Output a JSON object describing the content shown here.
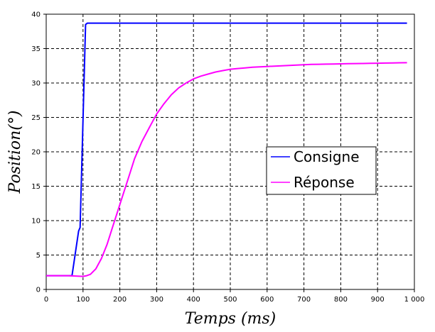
{
  "chart_data": {
    "type": "line",
    "xlabel": "Temps (ms)",
    "ylabel": "Position(°)",
    "xlim": [
      0,
      1000
    ],
    "ylim": [
      0,
      40
    ],
    "xticks": [
      0,
      100,
      200,
      300,
      400,
      500,
      600,
      700,
      800,
      900,
      1000
    ],
    "xtick_labels": [
      "0",
      "100",
      "200",
      "300",
      "400",
      "500",
      "600",
      "700",
      "800",
      "900",
      "1 000"
    ],
    "yticks": [
      0,
      5,
      10,
      15,
      20,
      25,
      30,
      35,
      40
    ],
    "ytick_labels": [
      "0",
      "5",
      "10",
      "15",
      "20",
      "25",
      "30",
      "35",
      "40"
    ],
    "grid": true,
    "legend_position": "right",
    "series": [
      {
        "name": "Consigne",
        "color": "#0000ff",
        "x": [
          0,
          70,
          88,
          92,
          107,
          112,
          980
        ],
        "y": [
          2,
          2,
          8.5,
          9,
          38.5,
          38.7,
          38.7
        ]
      },
      {
        "name": "Réponse",
        "color": "#ff00ff",
        "x": [
          0,
          60,
          100,
          110,
          120,
          135,
          150,
          165,
          180,
          195,
          210,
          225,
          240,
          260,
          280,
          300,
          320,
          340,
          360,
          380,
          400,
          420,
          440,
          460,
          480,
          500,
          520,
          540,
          560,
          580,
          600,
          620,
          640,
          660,
          680,
          700,
          720,
          740,
          760,
          780,
          800,
          820,
          840,
          860,
          880,
          900,
          920,
          940,
          960,
          980
        ],
        "y": [
          2,
          2,
          1.9,
          2,
          2.2,
          3,
          4.5,
          6.5,
          9,
          11.5,
          14,
          16.5,
          19,
          21.5,
          23.5,
          25.5,
          27,
          28.3,
          29.3,
          30,
          30.6,
          31,
          31.3,
          31.6,
          31.8,
          32,
          32.1,
          32.2,
          32.3,
          32.35,
          32.4,
          32.45,
          32.5,
          32.55,
          32.6,
          32.65,
          32.7,
          32.72,
          32.74,
          32.76,
          32.78,
          32.8,
          32.82,
          32.84,
          32.86,
          32.88,
          32.9,
          32.92,
          32.94,
          32.95
        ]
      }
    ]
  }
}
